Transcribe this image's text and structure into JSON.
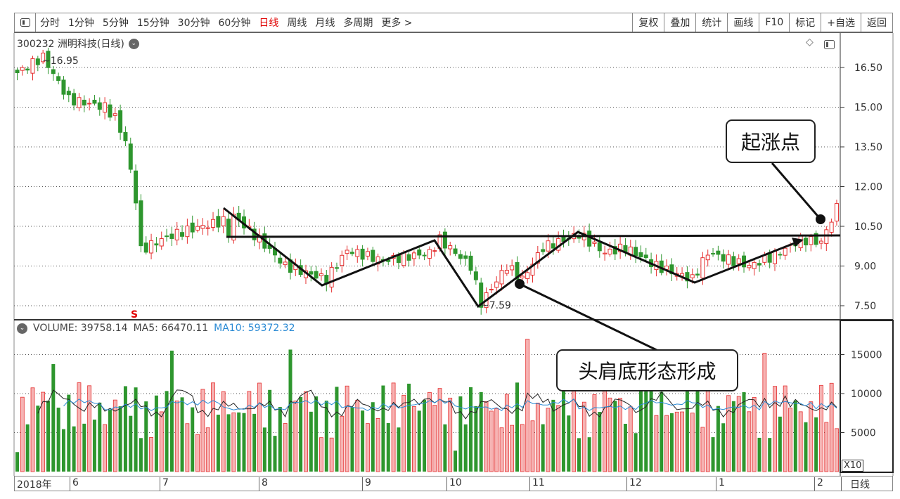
{
  "toolbar": {
    "periods": [
      "分时",
      "1分钟",
      "5分钟",
      "15分钟",
      "30分钟",
      "60分钟",
      "日线",
      "周线",
      "月线",
      "多周期",
      "更多 >"
    ],
    "active_period": "日线",
    "buttons": [
      "复权",
      "叠加",
      "统计",
      "画线",
      "F10",
      "标记",
      "+自选",
      "返回"
    ]
  },
  "stock": {
    "title": "300232 洲明科技(日线)"
  },
  "price_panel": {
    "max_label": "16.95",
    "min_label": "7.59",
    "signal": "S"
  },
  "volume_panel": {
    "volume": "VOLUME: 39758.14",
    "ma5": "MA5: 66470.11",
    "ma10": "MA10: 59372.32",
    "scale": "X10"
  },
  "colors": {
    "up": "#e53030",
    "down": "#2e962e",
    "ma5": "#222222",
    "ma10": "#2a8ad4"
  },
  "annotations": {
    "breakout": "起涨点",
    "pattern": "头肩底形态形成"
  },
  "xaxis": {
    "labels": [
      "2018年",
      "6",
      "7",
      "8",
      "9",
      "10",
      "11",
      "12",
      "1",
      "2"
    ],
    "period": "日线"
  },
  "chart_data": {
    "type": "candlestick",
    "price_ticks": [
      "16.50",
      "15.00",
      "13.50",
      "12.00",
      "10.50",
      "9.00",
      "7.50"
    ],
    "price_range": [
      7.5,
      16.5
    ],
    "volume_ticks": [
      "15000",
      "10000",
      "5000"
    ],
    "volume_range": [
      0,
      15000
    ],
    "price_keypoints": [
      [
        0,
        16.3
      ],
      [
        5,
        16.9
      ],
      [
        10,
        15.3
      ],
      [
        17,
        15.0
      ],
      [
        19,
        14.6
      ],
      [
        21,
        13.7
      ],
      [
        23,
        11.5
      ],
      [
        24,
        9.6
      ],
      [
        28,
        10.0
      ],
      [
        32,
        10.3
      ],
      [
        40,
        10.7
      ],
      [
        41,
        10.2
      ],
      [
        42,
        10.9
      ],
      [
        48,
        9.8
      ],
      [
        52,
        9.0
      ],
      [
        60,
        8.5
      ],
      [
        64,
        9.6
      ],
      [
        71,
        9.2
      ],
      [
        80,
        9.5
      ],
      [
        82,
        10.0
      ],
      [
        88,
        9.0
      ],
      [
        90,
        7.6
      ],
      [
        95,
        9.0
      ],
      [
        98,
        8.5
      ],
      [
        102,
        9.7
      ],
      [
        109,
        10.2
      ],
      [
        114,
        9.5
      ],
      [
        118,
        9.7
      ],
      [
        124,
        9.0
      ],
      [
        131,
        8.5
      ],
      [
        134,
        9.5
      ],
      [
        142,
        9.0
      ],
      [
        147,
        9.4
      ],
      [
        152,
        10.0
      ],
      [
        156,
        9.9
      ],
      [
        159,
        11.2
      ]
    ],
    "candle_count": 160
  }
}
